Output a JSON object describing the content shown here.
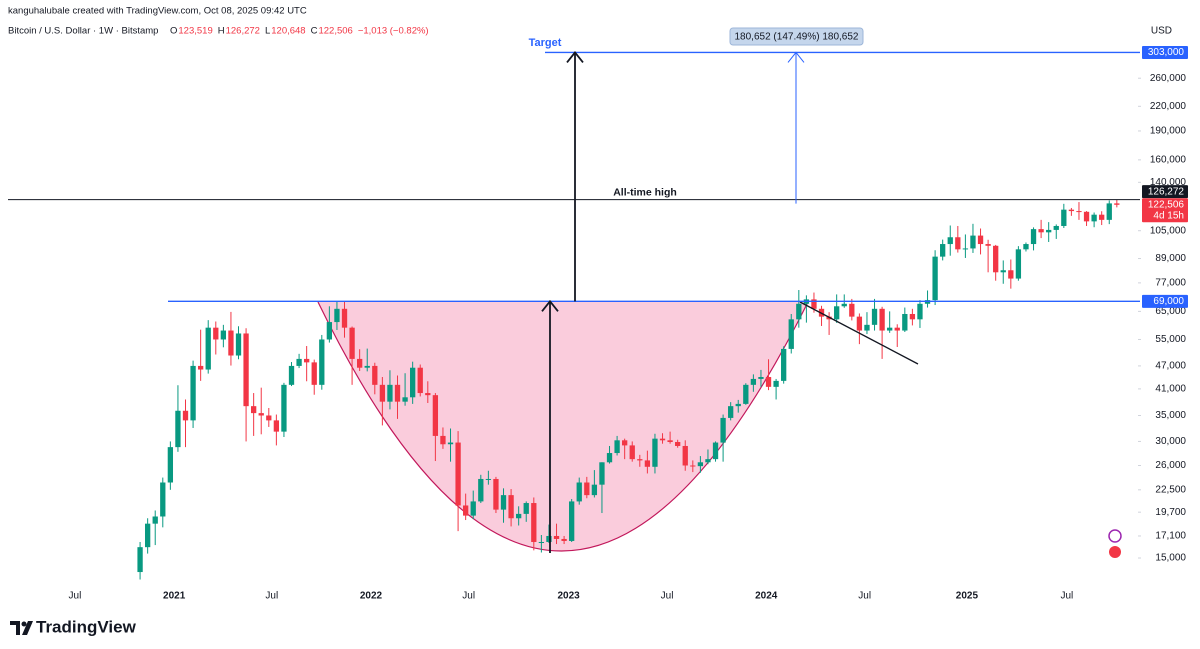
{
  "header": {
    "author_line": "kanguhalubale created with TradingView.com, Oct 08, 2025 09:42 UTC",
    "symbol": "Bitcoin / U.S. Dollar · 1W · Bitstamp",
    "ohlc": [
      {
        "key": "O",
        "value": "123,519"
      },
      {
        "key": "H",
        "value": "126,272"
      },
      {
        "key": "L",
        "value": "120,648"
      },
      {
        "key": "C",
        "value": "122,506"
      }
    ],
    "change": "−1,013 (−0.82%)"
  },
  "chart_data": {
    "type": "candlestick",
    "log_scale": true,
    "up_color": "#089981",
    "down_color": "#f23645",
    "currency": "USD",
    "ylim": [
      14390,
      367500
    ],
    "yticks": [
      {
        "value": 15000,
        "label": "15,000"
      },
      {
        "value": 17100,
        "label": "17,100"
      },
      {
        "value": 19700,
        "label": "19,700"
      },
      {
        "value": 22500,
        "label": "22,500"
      },
      {
        "value": 26000,
        "label": "26,000"
      },
      {
        "value": 30000,
        "label": "30,000"
      },
      {
        "value": 35000,
        "label": "35,000"
      },
      {
        "value": 41000,
        "label": "41,000"
      },
      {
        "value": 47000,
        "label": "47,000"
      },
      {
        "value": 55000,
        "label": "55,000"
      },
      {
        "value": 65000,
        "label": "65,000"
      },
      {
        "value": 77000,
        "label": "77,000"
      },
      {
        "value": 89000,
        "label": "89,000"
      },
      {
        "value": 105000,
        "label": "105,000"
      },
      {
        "value": 140000,
        "label": "140,000"
      },
      {
        "value": 160000,
        "label": "160,000"
      },
      {
        "value": 190000,
        "label": "190,000"
      },
      {
        "value": 220000,
        "label": "220,000"
      },
      {
        "value": 260000,
        "label": "260,000"
      }
    ],
    "xlim": [
      -18.5,
      131.4
    ],
    "xticks": [
      {
        "value": -8.6,
        "label": "Jul"
      },
      {
        "value": 4.5,
        "label": "2021"
      },
      {
        "value": 17.4,
        "label": "Jul"
      },
      {
        "value": 30.5,
        "label": "2022"
      },
      {
        "value": 43.4,
        "label": "Jul"
      },
      {
        "value": 56.6,
        "label": "2023"
      },
      {
        "value": 69.6,
        "label": "Jul"
      },
      {
        "value": 82.7,
        "label": "2024"
      },
      {
        "value": 95.7,
        "label": "Jul"
      },
      {
        "value": 109.2,
        "label": "2025"
      },
      {
        "value": 122.4,
        "label": "Jul"
      }
    ],
    "levels": [
      {
        "value": 303000,
        "label": "303,000",
        "color": "#2962ff"
      },
      {
        "value": 69000,
        "label": "69,000",
        "color": "#2962ff"
      }
    ],
    "all_time_high": {
      "value": 126272,
      "label": "126,272",
      "text": "All-time high"
    },
    "last_price": {
      "value": 122506,
      "label": "122,506",
      "countdown": "4d 15h"
    },
    "target_text": "Target",
    "measure_label": "180,652 (147.49%) 180,652",
    "ohlc": [
      [
        13800,
        16500,
        13200,
        16000
      ],
      [
        16000,
        19000,
        15400,
        18400
      ],
      [
        18400,
        19900,
        16200,
        19200
      ],
      [
        19200,
        24200,
        18000,
        23500
      ],
      [
        23500,
        30000,
        22500,
        29000
      ],
      [
        29000,
        41900,
        28200,
        36000
      ],
      [
        36000,
        38500,
        29000,
        34000
      ],
      [
        34000,
        48500,
        32500,
        47000
      ],
      [
        47000,
        58300,
        43000,
        46000
      ],
      [
        46000,
        61700,
        44900,
        59000
      ],
      [
        59000,
        61200,
        50300,
        55000
      ],
      [
        55000,
        60000,
        52500,
        58000
      ],
      [
        58000,
        64800,
        47100,
        50000
      ],
      [
        50000,
        59500,
        48900,
        57000
      ],
      [
        57000,
        58800,
        30000,
        37000
      ],
      [
        37000,
        40000,
        31000,
        35500
      ],
      [
        35500,
        41300,
        31300,
        35000
      ],
      [
        35000,
        36600,
        32700,
        34000
      ],
      [
        34000,
        35200,
        29300,
        31800
      ],
      [
        31800,
        42500,
        30800,
        42000
      ],
      [
        42000,
        48100,
        41700,
        47000
      ],
      [
        47000,
        50500,
        46400,
        49000
      ],
      [
        49000,
        52900,
        42900,
        48000
      ],
      [
        48000,
        48800,
        39600,
        42000
      ],
      [
        42000,
        56500,
        40800,
        55000
      ],
      [
        55000,
        67000,
        54000,
        61000
      ],
      [
        61000,
        69000,
        58200,
        66000
      ],
      [
        66000,
        68800,
        55600,
        59000
      ],
      [
        59000,
        59400,
        42000,
        49000
      ],
      [
        49000,
        51900,
        45600,
        46500
      ],
      [
        46500,
        52100,
        45500,
        47000
      ],
      [
        47000,
        47900,
        39700,
        42000
      ],
      [
        42000,
        44000,
        33000,
        38000
      ],
      [
        38000,
        45800,
        36300,
        42000
      ],
      [
        42000,
        44400,
        34300,
        38000
      ],
      [
        38000,
        45000,
        37100,
        39000
      ],
      [
        39000,
        48200,
        37500,
        46500
      ],
      [
        46500,
        47400,
        39200,
        40000
      ],
      [
        40000,
        42900,
        37700,
        39500
      ],
      [
        39500,
        40000,
        26700,
        31000
      ],
      [
        31000,
        32600,
        28700,
        29500
      ],
      [
        29500,
        32400,
        26600,
        29800
      ],
      [
        29800,
        31900,
        17600,
        20500
      ],
      [
        20500,
        22000,
        18800,
        19300
      ],
      [
        19300,
        22400,
        18900,
        21000
      ],
      [
        21000,
        24600,
        20800,
        24000
      ],
      [
        24000,
        25200,
        23200,
        24000
      ],
      [
        24000,
        24300,
        19600,
        20000
      ],
      [
        20000,
        22700,
        18500,
        21800
      ],
      [
        21800,
        22600,
        18100,
        19000
      ],
      [
        19000,
        20400,
        18200,
        19500
      ],
      [
        19500,
        21000,
        18600,
        20800
      ],
      [
        20800,
        21500,
        15700,
        16500
      ],
      [
        16500,
        17200,
        15500,
        16500
      ],
      [
        16500,
        18300,
        16400,
        17100
      ],
      [
        17100,
        18400,
        16300,
        16800
      ],
      [
        16800,
        17100,
        16300,
        16600
      ],
      [
        16600,
        21300,
        16500,
        21000
      ],
      [
        21000,
        24200,
        20600,
        23500
      ],
      [
        23500,
        24300,
        21400,
        21800
      ],
      [
        21800,
        25300,
        21500,
        23200
      ],
      [
        23200,
        26500,
        19600,
        26500
      ],
      [
        26500,
        29200,
        26300,
        28000
      ],
      [
        28000,
        31000,
        27600,
        30200
      ],
      [
        30200,
        30500,
        27000,
        29300
      ],
      [
        29300,
        30000,
        26600,
        27000
      ],
      [
        27000,
        27700,
        25800,
        26800
      ],
      [
        26800,
        28400,
        24800,
        25800
      ],
      [
        25800,
        31400,
        24800,
        30500
      ],
      [
        30500,
        31500,
        29600,
        30200
      ],
      [
        30200,
        31800,
        29600,
        29900
      ],
      [
        29900,
        30300,
        28900,
        29200
      ],
      [
        29200,
        30200,
        25200,
        26000
      ],
      [
        26000,
        26800,
        25000,
        25900
      ],
      [
        25900,
        27500,
        24900,
        26500
      ],
      [
        26500,
        28600,
        26200,
        27000
      ],
      [
        27000,
        30000,
        26600,
        29800
      ],
      [
        29800,
        35200,
        26600,
        34500
      ],
      [
        34500,
        37900,
        34000,
        37000
      ],
      [
        37000,
        38400,
        35600,
        37500
      ],
      [
        37500,
        42400,
        37300,
        42000
      ],
      [
        42000,
        44700,
        40300,
        43500
      ],
      [
        43500,
        45900,
        41500,
        44000
      ],
      [
        44000,
        48900,
        40700,
        41500
      ],
      [
        41500,
        43500,
        38500,
        43000
      ],
      [
        43000,
        52800,
        42300,
        52000
      ],
      [
        52000,
        64000,
        50600,
        62000
      ],
      [
        62000,
        73800,
        59000,
        68000
      ],
      [
        68000,
        71500,
        60800,
        69800
      ],
      [
        69800,
        72700,
        64500,
        66000
      ],
      [
        66000,
        67200,
        59600,
        63000
      ],
      [
        63000,
        64700,
        56500,
        62000
      ],
      [
        62000,
        71900,
        60700,
        67000
      ],
      [
        67000,
        71900,
        66400,
        68000
      ],
      [
        68000,
        70000,
        61600,
        63000
      ],
      [
        63000,
        64200,
        53500,
        58000
      ],
      [
        58000,
        64700,
        56800,
        60000
      ],
      [
        60000,
        70000,
        58000,
        66000
      ],
      [
        66000,
        66800,
        49000,
        58000
      ],
      [
        58000,
        65000,
        57200,
        59000
      ],
      [
        59000,
        60200,
        52600,
        58000
      ],
      [
        58000,
        66500,
        57500,
        64000
      ],
      [
        64000,
        66000,
        59800,
        62000
      ],
      [
        62000,
        69500,
        58900,
        68000
      ],
      [
        68000,
        73600,
        66500,
        69500
      ],
      [
        69500,
        93500,
        67500,
        90000
      ],
      [
        90000,
        99600,
        88000,
        97000
      ],
      [
        97000,
        108300,
        90500,
        101000
      ],
      [
        101000,
        108000,
        92200,
        94000
      ],
      [
        94000,
        102700,
        89300,
        94500
      ],
      [
        94500,
        109400,
        92000,
        102000
      ],
      [
        102000,
        106400,
        91200,
        97000
      ],
      [
        97000,
        99500,
        82000,
        96000
      ],
      [
        96000,
        96500,
        78000,
        82000
      ],
      [
        82000,
        88000,
        76600,
        83000
      ],
      [
        83000,
        88500,
        74400,
        79000
      ],
      [
        79000,
        95800,
        78000,
        94000
      ],
      [
        94000,
        97900,
        92800,
        97000
      ],
      [
        97000,
        107100,
        93400,
        106000
      ],
      [
        106000,
        112000,
        100500,
        104000
      ],
      [
        104000,
        110500,
        98200,
        105500
      ],
      [
        105500,
        109000,
        100000,
        108000
      ],
      [
        108000,
        123200,
        106700,
        119000
      ],
      [
        119000,
        120200,
        114700,
        118000
      ],
      [
        118000,
        124500,
        112000,
        117500
      ],
      [
        117500,
        118000,
        108000,
        111000
      ],
      [
        111000,
        117000,
        107200,
        115500
      ],
      [
        115500,
        117900,
        108600,
        112000
      ],
      [
        112000,
        125700,
        109200,
        123519
      ],
      [
        123519,
        126272,
        120648,
        122506
      ]
    ]
  },
  "footer": {
    "brand": "TradingView"
  }
}
